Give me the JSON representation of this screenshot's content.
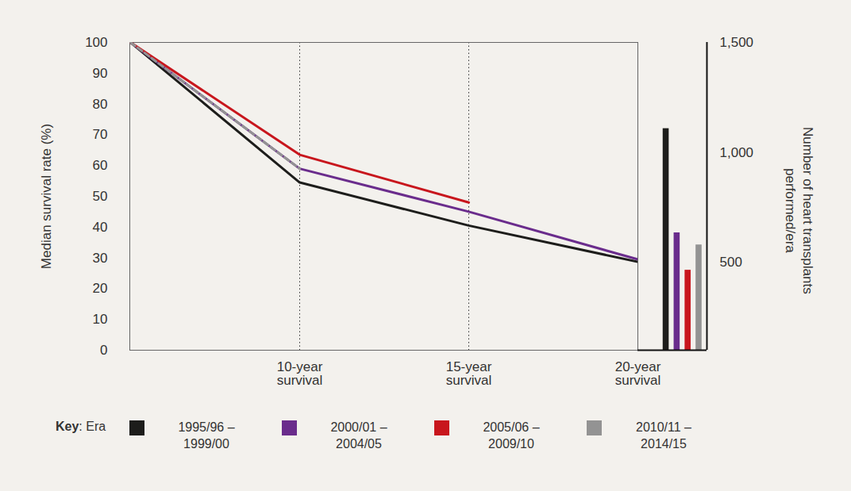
{
  "chart_data": [
    {
      "type": "line",
      "y_label": "Median survival rate (%)",
      "categories": [
        null,
        "10-year survival",
        "15-year survival",
        "20-year survival"
      ],
      "series": [
        {
          "name": "1995/96 – 1999/00",
          "color": "#1d1d1b",
          "line_style": "solid",
          "values": [
            100,
            54.5,
            40.5,
            28.7
          ]
        },
        {
          "name": "2000/01 – 2004/05",
          "color": "#6a2c8c",
          "line_style": "solid",
          "values": [
            100,
            59,
            45,
            29.5
          ]
        },
        {
          "name": "2005/06 – 2009/10",
          "color": "#c8161d",
          "line_style": "solid",
          "values": [
            100,
            63.5,
            48,
            null
          ]
        },
        {
          "name": "2010/11 – 2014/15",
          "color": "#939393",
          "line_style": "dashed",
          "values": [
            100,
            59,
            null,
            null
          ]
        }
      ],
      "ylim": [
        0,
        100
      ],
      "yticks": [
        0,
        10,
        20,
        30,
        40,
        50,
        60,
        70,
        80,
        90,
        100
      ],
      "grid": "x",
      "legend": "bottom",
      "legend_title": "Key: Era"
    },
    {
      "type": "bar",
      "y_label": "Number of heart transplants performed/era",
      "categories": [
        null,
        null,
        null,
        null
      ],
      "values": [
        1108,
        634,
        464,
        579
      ],
      "colors": [
        "#1d1d1b",
        "#6a2c8c",
        "#c8161d",
        "#939393"
      ],
      "ylim": [
        100,
        1500
      ],
      "yticks": [
        500,
        1000,
        1500
      ],
      "tick_labels": "y"
    }
  ]
}
